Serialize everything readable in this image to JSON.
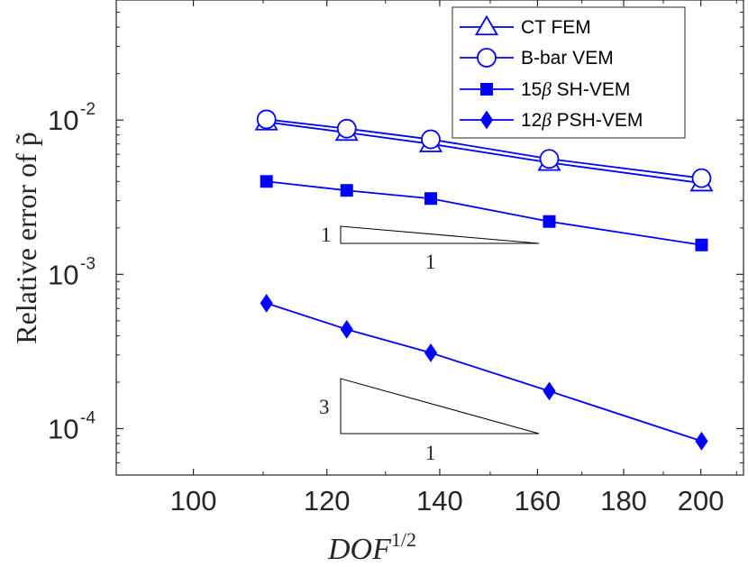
{
  "chart_data": {
    "type": "line",
    "xlabel": "DOF",
    "xlabel_superscript": "1/2",
    "ylabel": "Relative error of p̃",
    "xscale": "log",
    "yscale": "log",
    "xlim": [
      90,
      212
    ],
    "ylim": [
      5e-05,
      0.06
    ],
    "x_ticks": [
      100,
      120,
      140,
      160,
      180,
      200
    ],
    "x_tick_labels": [
      "100",
      "120",
      "140",
      "160",
      "180",
      "200"
    ],
    "y_ticks": [
      0.0001,
      0.001,
      0.01
    ],
    "y_tick_labels": [
      {
        "base": "10",
        "exp": "-4"
      },
      {
        "base": "10",
        "exp": "-3"
      },
      {
        "base": "10",
        "exp": "-2"
      }
    ],
    "x": [
      110.5,
      123.3,
      138.3,
      162.6,
      200.2
    ],
    "series": [
      {
        "name": "CT FEM",
        "label_text": "CT FEM",
        "marker": "triangle",
        "color": "#0000ff",
        "values": [
          0.0097,
          0.0083,
          0.007,
          0.0053,
          0.0039
        ]
      },
      {
        "name": "B-bar VEM",
        "label_text": "B-bar VEM",
        "marker": "circle",
        "color": "#0000ff",
        "values": [
          0.0101,
          0.0088,
          0.0075,
          0.0056,
          0.0042
        ]
      },
      {
        "name": "15β SH-VEM",
        "label_prefix": "15",
        "label_greek": "β",
        "label_suffix": " SH-VEM",
        "marker": "square",
        "color": "#0000ff",
        "values": [
          0.004,
          0.0035,
          0.0031,
          0.0022,
          0.00155
        ]
      },
      {
        "name": "12β PSH-VEM",
        "label_prefix": "12",
        "label_greek": "β",
        "label_suffix": " PSH-VEM",
        "marker": "diamond",
        "color": "#0000ff",
        "values": [
          0.00065,
          0.00044,
          0.00031,
          0.000175,
          8.3e-05
        ]
      }
    ],
    "slope_triangles": [
      {
        "rise_label": "1",
        "run_label": "1"
      },
      {
        "rise_label": "3",
        "run_label": "1"
      }
    ],
    "legend_position": "top-right",
    "grid": false
  }
}
